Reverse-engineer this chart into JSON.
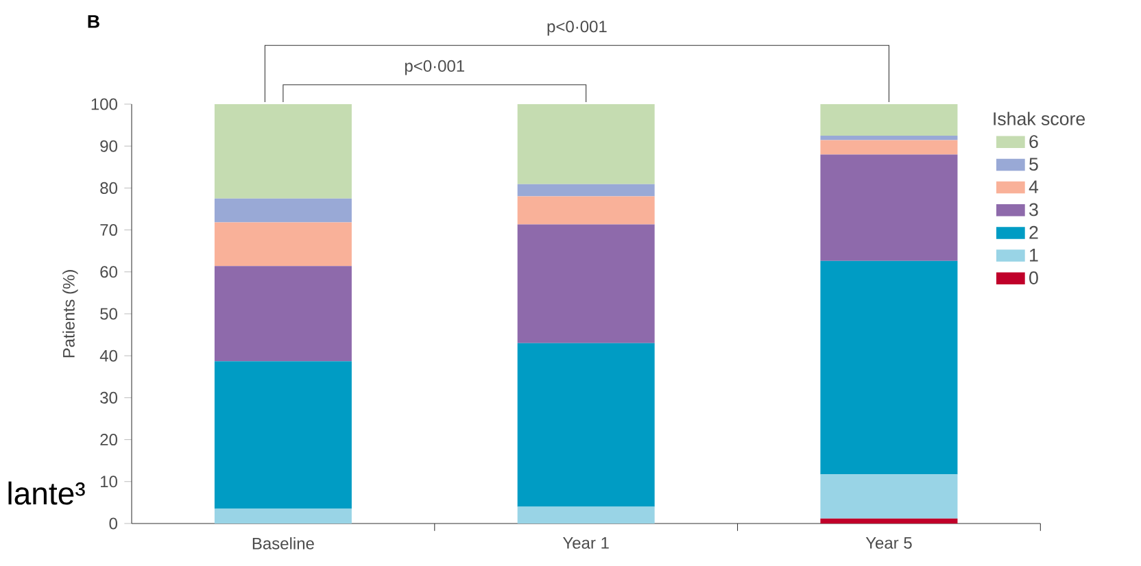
{
  "chart_data": {
    "type": "bar",
    "title": "**B**",
    "stacked": true,
    "categories": [
      "Baseline",
      "Year 1",
      "Year 5"
    ],
    "ylabel": "Patients (%)",
    "legend_title": "Ishak score",
    "legend": "top right",
    "ylim": [
      0,
      100
    ],
    "yticks": [
      0,
      10,
      20,
      30,
      40,
      50,
      60,
      70,
      80,
      90,
      100
    ],
    "series": [
      {
        "name": "0",
        "color": "#c0002a",
        "values": [
          0,
          0,
          1.2
        ]
      },
      {
        "name": "1",
        "color": "#99d4e6",
        "values": [
          3.5,
          4,
          10.5
        ]
      },
      {
        "name": "2",
        "color": "#009cc4",
        "values": [
          35.2,
          39,
          50.9
        ]
      },
      {
        "name": "3",
        "color": "#8e6aab",
        "values": [
          22.7,
          28.3,
          25.4
        ]
      },
      {
        "name": "4",
        "color": "#f9b199",
        "values": [
          10.4,
          6.7,
          3.4
        ]
      },
      {
        "name": "5",
        "color": "#99a9d6",
        "values": [
          5.7,
          2.9,
          1.1
        ]
      },
      {
        "name": "6",
        "color": "#c5dcb1",
        "values": [
          22.5,
          19.1,
          7.5
        ]
      }
    ],
    "annotations": [
      "p<0·001",
      "p<0·001",
      "lante³"
    ]
  }
}
